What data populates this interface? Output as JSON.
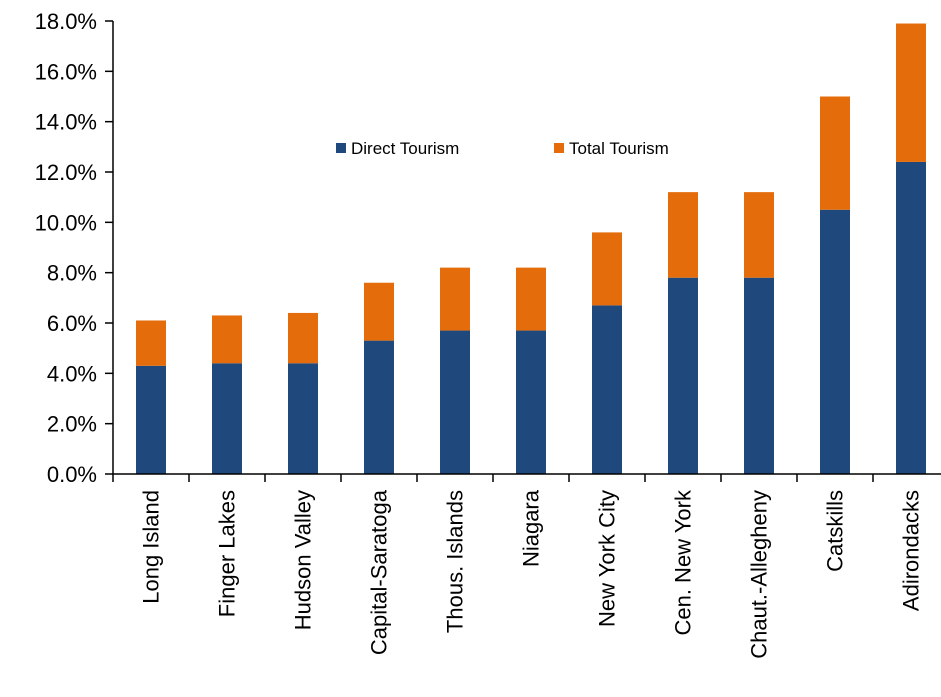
{
  "chart_data": {
    "type": "bar",
    "stacked": true,
    "categories": [
      "Long Island",
      "Finger Lakes",
      "Hudson Valley",
      "Capital-Saratoga",
      "Thous. Islands",
      "Niagara",
      "New York City",
      "Cen. New York",
      "Chaut.-Allegheny",
      "Catskills",
      "Adirondacks"
    ],
    "series": [
      {
        "name": "Direct Tourism",
        "color": "#1f497d",
        "values": [
          4.3,
          4.4,
          4.4,
          5.3,
          5.7,
          5.7,
          6.7,
          7.8,
          7.8,
          10.5,
          12.4
        ]
      },
      {
        "name": "Total Tourism",
        "color": "#e46c0a",
        "values": [
          1.8,
          1.9,
          2.0,
          2.3,
          2.5,
          2.5,
          2.9,
          3.4,
          3.4,
          4.5,
          5.5
        ]
      }
    ],
    "ylim": [
      0,
      18
    ],
    "yticks": [
      "0.0%",
      "2.0%",
      "4.0%",
      "6.0%",
      "8.0%",
      "10.0%",
      "12.0%",
      "14.0%",
      "16.0%",
      "18.0%"
    ],
    "title": "",
    "xlabel": "",
    "ylabel": "",
    "grid": false,
    "legend_position": "top-center"
  }
}
